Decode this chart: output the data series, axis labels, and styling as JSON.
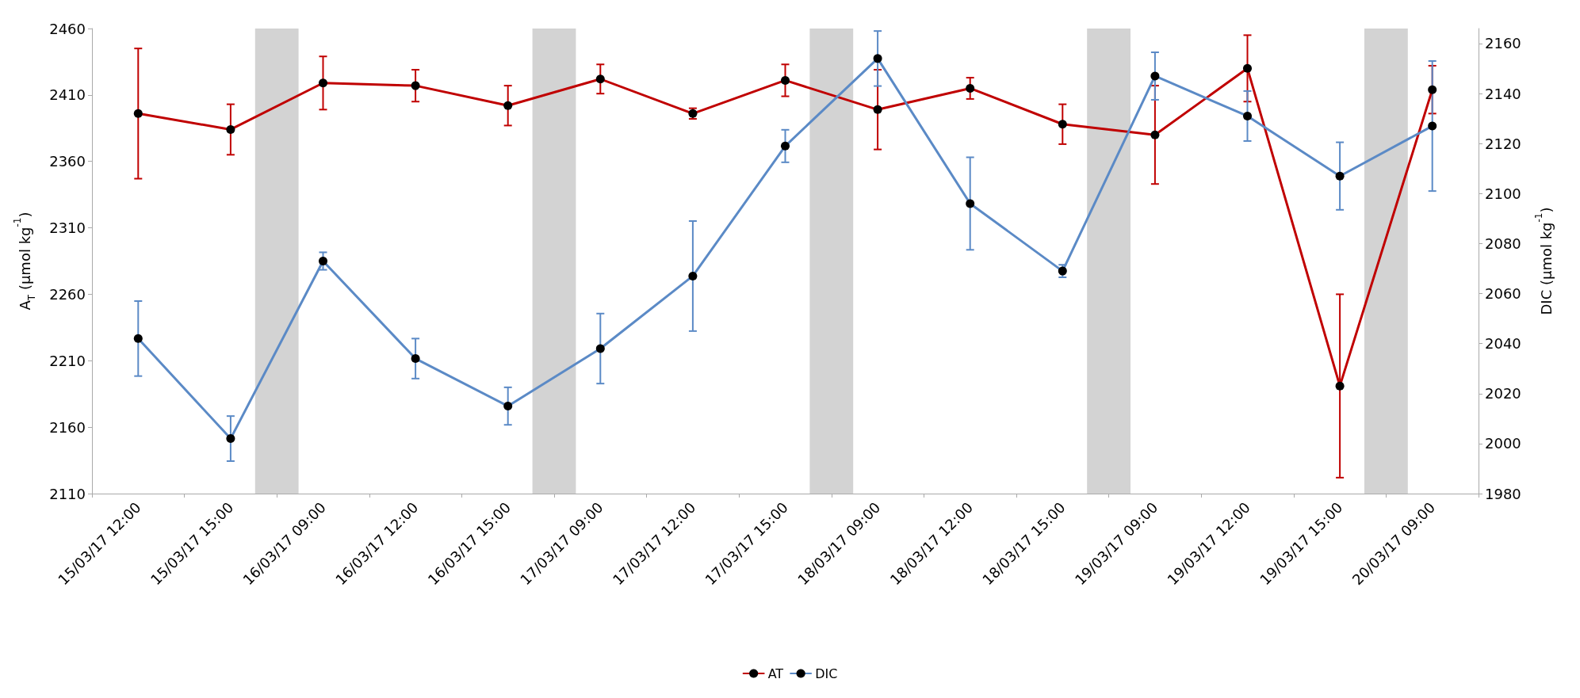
{
  "chart_data": {
    "type": "line",
    "ylabel": "A$_{T}$ (µmol kg$^{-1}$)",
    "y2label": "DIC (µmol kg$^{-1}$)",
    "categories": [
      "15/03/17 12:00",
      "15/03/17 15:00",
      "16/03/17 09:00",
      "16/03/17 12:00",
      "16/03/17 15:00",
      "17/03/17 09:00",
      "17/03/17 12:00",
      "17/03/17 15:00",
      "18/03/17 09:00",
      "18/03/17 12:00",
      "18/03/17 15:00",
      "19/03/17 09:00",
      "19/03/17 12:00",
      "19/03/17 15:00",
      "20/03/17 09:00"
    ],
    "series": [
      {
        "name": "AT",
        "color": "#c00000",
        "values": [
          2396,
          2384,
          2419,
          2417,
          2402,
          2422,
          2396,
          2421,
          2399,
          2415,
          2388,
          2380,
          2430,
          2191,
          2414
        ],
        "errors": [
          49,
          19,
          20,
          12,
          15,
          11,
          4,
          12,
          30,
          8,
          15,
          37,
          25,
          69,
          18
        ]
      },
      {
        "name": "DIC",
        "color": "#5b8ac6",
        "axis": "y2",
        "values": [
          2042,
          2002,
          2073,
          2034,
          2015,
          2038,
          2067,
          2119,
          2154,
          2096,
          2069,
          2147,
          2131,
          2107,
          2127
        ],
        "errors": [
          15,
          9,
          3.5,
          8,
          7.5,
          14,
          22,
          6.5,
          11,
          18.5,
          2.5,
          9.5,
          10,
          13.5,
          26
        ]
      }
    ],
    "ylim": [
      2110,
      2460
    ],
    "yticks": [
      2110,
      2160,
      2210,
      2260,
      2310,
      2360,
      2410,
      2460
    ],
    "y2lim": [
      1980,
      2166
    ],
    "y2ticks": [
      1980,
      2000,
      2020,
      2040,
      2060,
      2080,
      2100,
      2120,
      2140,
      2160
    ],
    "bands": [
      {
        "axis": "x",
        "from": "15/03/17 15:00",
        "to": "16/03/17 09:00",
        "color": "#d3d3d3"
      },
      {
        "axis": "x",
        "from": "16/03/17 15:00",
        "to": "17/03/17 09:00",
        "color": "#d3d3d3"
      },
      {
        "axis": "x",
        "from": "17/03/17 15:00",
        "to": "18/03/17 09:00",
        "color": "#d3d3d3"
      },
      {
        "axis": "x",
        "from": "18/03/17 15:00",
        "to": "19/03/17 09:00",
        "color": "#d3d3d3"
      },
      {
        "axis": "x",
        "from": "19/03/17 15:00",
        "to": "20/03/17 09:00",
        "color": "#d3d3d3"
      }
    ],
    "marker": "circle",
    "grid": false,
    "legend": "bottom"
  }
}
